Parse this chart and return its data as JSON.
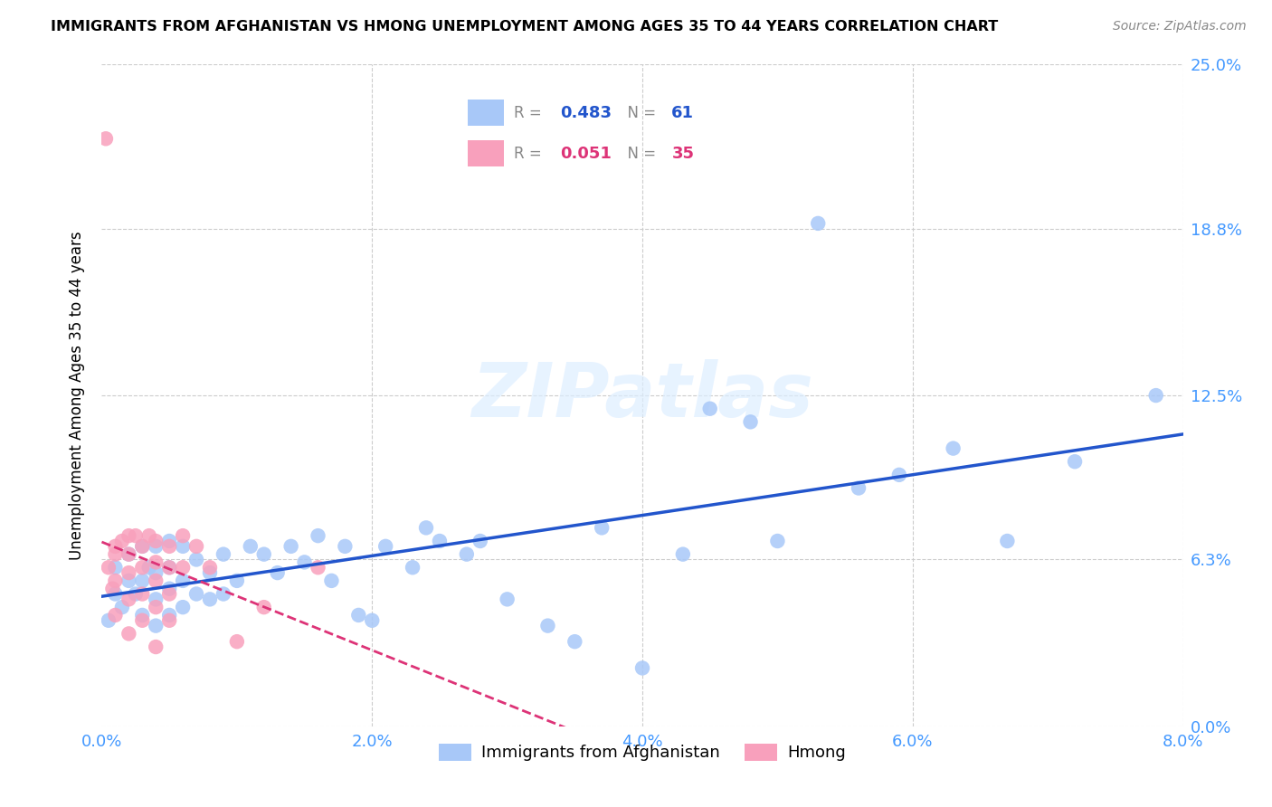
{
  "title": "IMMIGRANTS FROM AFGHANISTAN VS HMONG UNEMPLOYMENT AMONG AGES 35 TO 44 YEARS CORRELATION CHART",
  "source": "Source: ZipAtlas.com",
  "xlabel_ticks": [
    "0.0%",
    "2.0%",
    "4.0%",
    "6.0%",
    "8.0%"
  ],
  "xlabel_tick_vals": [
    0.0,
    0.02,
    0.04,
    0.06,
    0.08
  ],
  "ylabel_ticks": [
    "0.0%",
    "6.3%",
    "12.5%",
    "18.8%",
    "25.0%"
  ],
  "ylabel_tick_vals": [
    0.0,
    0.063,
    0.125,
    0.188,
    0.25
  ],
  "ylabel": "Unemployment Among Ages 35 to 44 years",
  "legend_labels": [
    "Immigrants from Afghanistan",
    "Hmong"
  ],
  "afghan_R": 0.483,
  "afghan_N": 61,
  "hmong_R": 0.051,
  "hmong_N": 35,
  "afghan_color": "#a8c8f8",
  "hmong_color": "#f8a0bc",
  "afghan_line_color": "#2255cc",
  "hmong_line_color": "#dd3377",
  "watermark_color": "#ddeeff",
  "xlim": [
    0.0,
    0.08
  ],
  "ylim": [
    0.0,
    0.25
  ],
  "afghan_x": [
    0.0005,
    0.001,
    0.001,
    0.0015,
    0.002,
    0.002,
    0.0025,
    0.003,
    0.003,
    0.003,
    0.0035,
    0.004,
    0.004,
    0.004,
    0.004,
    0.005,
    0.005,
    0.005,
    0.005,
    0.006,
    0.006,
    0.006,
    0.007,
    0.007,
    0.008,
    0.008,
    0.009,
    0.009,
    0.01,
    0.011,
    0.012,
    0.013,
    0.014,
    0.015,
    0.016,
    0.017,
    0.018,
    0.019,
    0.02,
    0.021,
    0.023,
    0.024,
    0.025,
    0.027,
    0.028,
    0.03,
    0.033,
    0.035,
    0.037,
    0.04,
    0.043,
    0.045,
    0.048,
    0.05,
    0.053,
    0.056,
    0.059,
    0.063,
    0.067,
    0.072,
    0.078
  ],
  "afghan_y": [
    0.04,
    0.05,
    0.06,
    0.045,
    0.055,
    0.065,
    0.05,
    0.042,
    0.055,
    0.068,
    0.06,
    0.038,
    0.048,
    0.058,
    0.068,
    0.042,
    0.052,
    0.06,
    0.07,
    0.045,
    0.055,
    0.068,
    0.05,
    0.063,
    0.048,
    0.058,
    0.05,
    0.065,
    0.055,
    0.068,
    0.065,
    0.058,
    0.068,
    0.062,
    0.072,
    0.055,
    0.068,
    0.042,
    0.04,
    0.068,
    0.06,
    0.075,
    0.07,
    0.065,
    0.07,
    0.048,
    0.038,
    0.032,
    0.075,
    0.022,
    0.065,
    0.12,
    0.115,
    0.07,
    0.19,
    0.09,
    0.095,
    0.105,
    0.07,
    0.1,
    0.125
  ],
  "hmong_x": [
    0.0003,
    0.0005,
    0.0008,
    0.001,
    0.001,
    0.001,
    0.001,
    0.0015,
    0.002,
    0.002,
    0.002,
    0.002,
    0.002,
    0.0025,
    0.003,
    0.003,
    0.003,
    0.003,
    0.0035,
    0.004,
    0.004,
    0.004,
    0.004,
    0.004,
    0.005,
    0.005,
    0.005,
    0.005,
    0.006,
    0.006,
    0.007,
    0.008,
    0.01,
    0.012,
    0.016
  ],
  "hmong_y": [
    0.222,
    0.06,
    0.052,
    0.068,
    0.065,
    0.055,
    0.042,
    0.07,
    0.072,
    0.065,
    0.058,
    0.048,
    0.035,
    0.072,
    0.068,
    0.06,
    0.05,
    0.04,
    0.072,
    0.07,
    0.062,
    0.055,
    0.045,
    0.03,
    0.068,
    0.06,
    0.05,
    0.04,
    0.072,
    0.06,
    0.068,
    0.06,
    0.032,
    0.045,
    0.06
  ]
}
